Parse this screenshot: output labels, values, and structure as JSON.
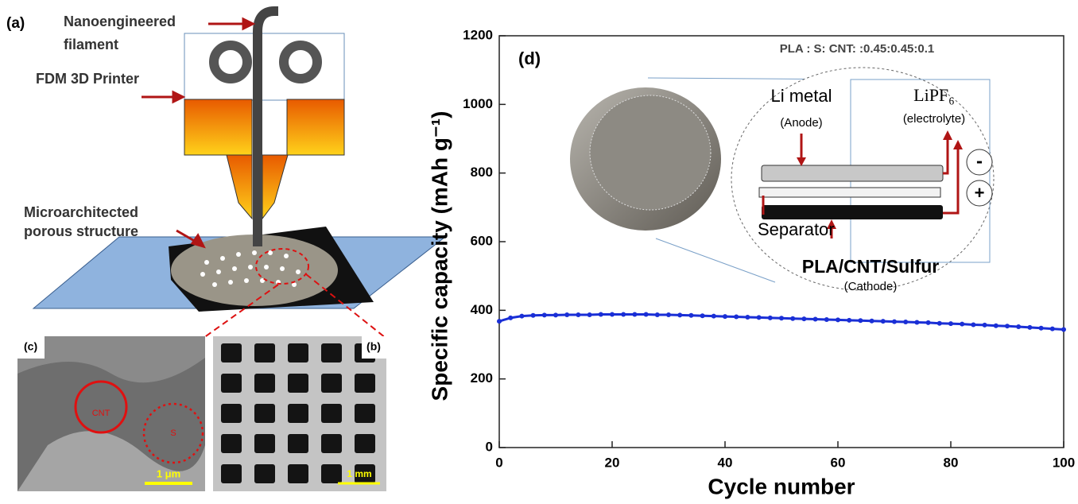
{
  "chart_data": {
    "type": "line",
    "annotation": "PLA : S: CNT: :0.45:0.45:0.1",
    "panel_label": "(d)",
    "x_label": "Cycle number",
    "y_label": "Specific capacity (mAh g⁻¹)",
    "x": [
      0,
      2,
      4,
      6,
      8,
      10,
      12,
      14,
      16,
      18,
      20,
      22,
      24,
      26,
      28,
      30,
      32,
      34,
      36,
      38,
      40,
      42,
      44,
      46,
      48,
      50,
      52,
      54,
      56,
      58,
      60,
      62,
      64,
      66,
      68,
      70,
      72,
      74,
      76,
      78,
      80,
      82,
      84,
      86,
      88,
      90,
      92,
      94,
      96,
      98,
      100
    ],
    "series": [
      {
        "color": "#1a2fd6",
        "values": [
          368,
          378,
          383,
          385,
          386,
          386,
          387,
          387,
          387,
          388,
          388,
          388,
          388,
          388,
          387,
          387,
          386,
          385,
          384,
          383,
          382,
          381,
          380,
          379,
          378,
          377,
          376,
          375,
          374,
          373,
          372,
          371,
          370,
          369,
          368,
          367,
          366,
          365,
          364,
          362,
          361,
          360,
          358,
          357,
          355,
          354,
          352,
          350,
          348,
          346,
          344
        ]
      }
    ],
    "xlim": [
      0,
      100
    ],
    "xticks": [
      0,
      20,
      40,
      60,
      80,
      100
    ],
    "ylim": [
      0,
      1200
    ],
    "yticks": [
      0,
      200,
      400,
      600,
      800,
      1000,
      1200
    ],
    "inset": {
      "anode": "Li metal",
      "anode_note": "(Anode)",
      "electrolyte": "LiPF₆",
      "electrolyte_note": "(electrolyte)",
      "minus": "-",
      "plus": "+",
      "separator": "Separator",
      "cathode": "PLA/CNT/Sulfur",
      "cathode_note": "(Cathode)"
    }
  },
  "panel_a": {
    "label": "(a)",
    "filament": [
      "Nanoengineered",
      "filament"
    ],
    "printer": "FDM 3D Printer",
    "structure": [
      "Microarchitected",
      "porous structure"
    ]
  },
  "panel_b": {
    "label": "(b)",
    "scale": "1 mm"
  },
  "panel_c": {
    "label": "(c)",
    "cnt": "CNT",
    "s": "S",
    "scale": "1 μm"
  }
}
